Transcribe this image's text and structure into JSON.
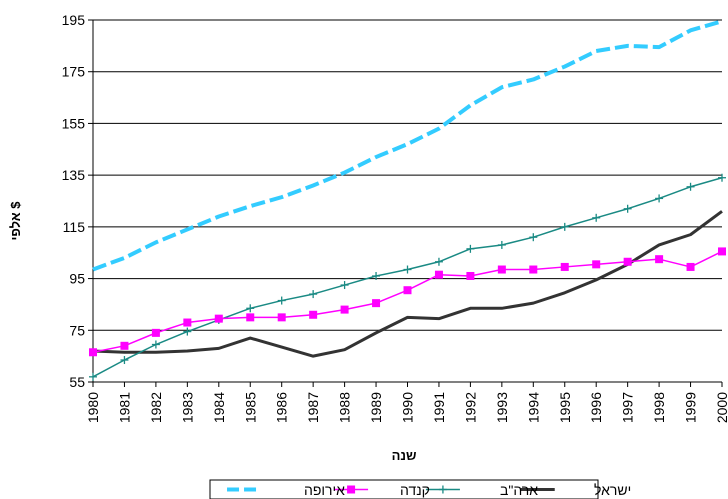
{
  "chart_data": {
    "type": "line",
    "xlabel": "שנה",
    "ylabel": "אלפי $",
    "ylim": [
      55,
      195
    ],
    "yticks": [
      55,
      75,
      95,
      115,
      135,
      155,
      175,
      195
    ],
    "categories": [
      "1980",
      "1981",
      "1982",
      "1983",
      "1984",
      "1985",
      "1986",
      "1987",
      "1988",
      "1989",
      "1990",
      "1991",
      "1992",
      "1993",
      "1994",
      "1995",
      "1996",
      "1997",
      "1998",
      "1999",
      "2000"
    ],
    "grid": "horizontal",
    "legend_position": "bottom",
    "series": [
      {
        "name": "ישראל",
        "color": "#333333",
        "style": "solid",
        "marker": "none",
        "values": [
          67,
          66.5,
          66.5,
          67,
          68,
          72,
          68.5,
          65,
          67.5,
          74,
          80,
          79.5,
          83.5,
          83.5,
          85.5,
          89.5,
          94.5,
          100.5,
          108,
          112,
          121
        ]
      },
      {
        "name": "ארה\"ב",
        "color": "#1a8a84",
        "style": "solid",
        "marker": "plus",
        "values": [
          57,
          63.5,
          69.5,
          74.5,
          79,
          83.5,
          86.5,
          89,
          92.5,
          96,
          98.5,
          101.5,
          106.5,
          108,
          111,
          115,
          118.5,
          122,
          126,
          130.5,
          134
        ]
      },
      {
        "name": "קנדה",
        "color": "#ff00ff",
        "style": "solid",
        "marker": "square",
        "values": [
          66.5,
          69,
          74,
          78,
          79.5,
          80,
          80,
          81,
          83,
          85.5,
          90.5,
          96.5,
          96,
          98.5,
          98.5,
          99.5,
          100.5,
          101.5,
          102.5,
          99.5,
          105.5
        ]
      },
      {
        "name": "אירופה",
        "color": "#33ccff",
        "style": "dashed",
        "marker": "none",
        "values": [
          98.5,
          103,
          109,
          114,
          119,
          123,
          126.5,
          131,
          136,
          142,
          147,
          153,
          162,
          169,
          172,
          177,
          183,
          185,
          184.5,
          191,
          194.5
        ]
      }
    ]
  }
}
